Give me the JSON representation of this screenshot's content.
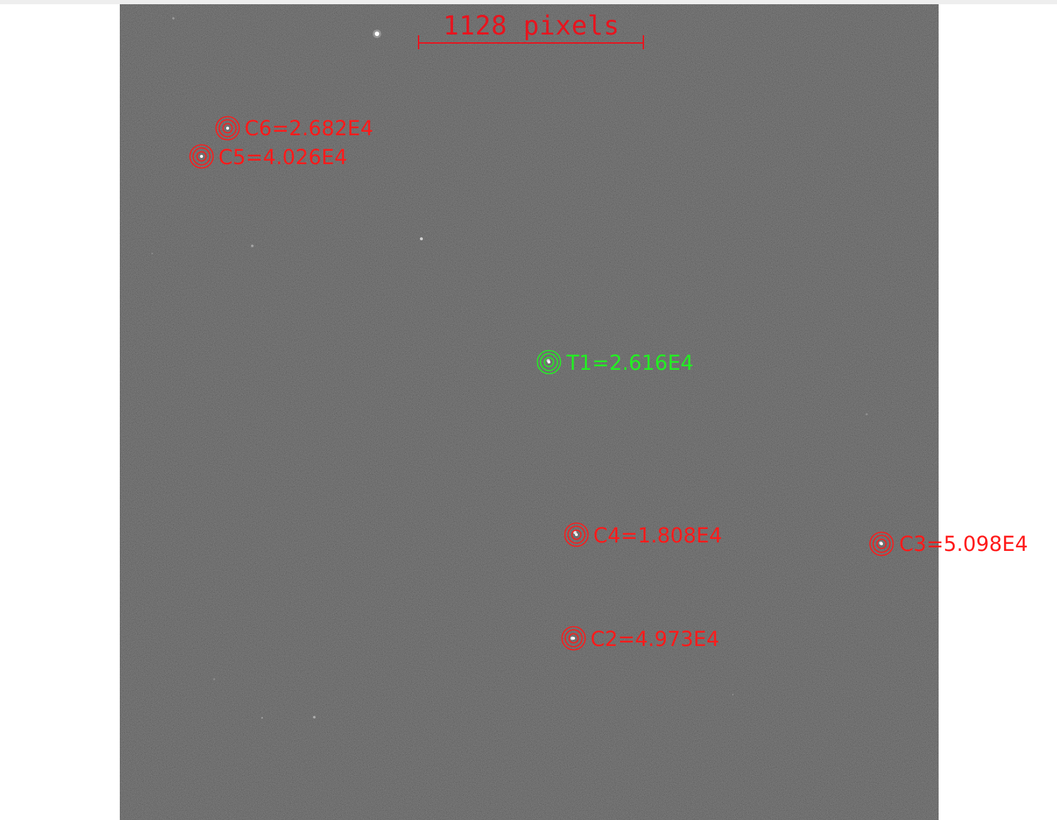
{
  "scale_bar": {
    "label": "1128 pixels",
    "color": "#e8141e"
  },
  "apertures": [
    {
      "id": "C6",
      "text": "C6=2.682E4",
      "color": "#ff1a1a",
      "kind": "comparison"
    },
    {
      "id": "C5",
      "text": "C5=4.026E4",
      "color": "#ff1a1a",
      "kind": "comparison"
    },
    {
      "id": "T1",
      "text": "T1=2.616E4",
      "color": "#22f022",
      "kind": "target"
    },
    {
      "id": "C4",
      "text": "C4=1.808E4",
      "color": "#ff1a1a",
      "kind": "comparison"
    },
    {
      "id": "C3",
      "text": "C3=5.098E4",
      "color": "#ff1a1a",
      "kind": "comparison"
    },
    {
      "id": "C2",
      "text": "C2=4.973E4",
      "color": "#ff1a1a",
      "kind": "comparison"
    }
  ],
  "image": {
    "background_color": "#242424",
    "icon": "star-field-image"
  }
}
